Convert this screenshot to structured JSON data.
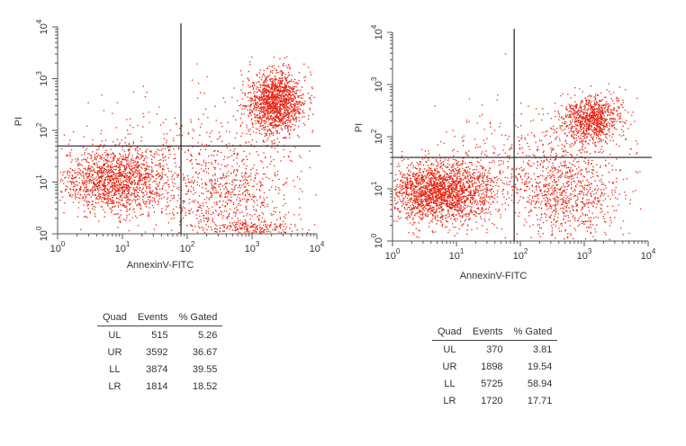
{
  "chart_data": [
    {
      "type": "scatter",
      "xlabel": "AnnexinV-FITC",
      "ylabel": "PI",
      "xscale": "log",
      "yscale": "log",
      "xlim": [
        1,
        10000
      ],
      "ylim": [
        1,
        10000
      ],
      "quadrant_x": 80,
      "quadrant_y": 50,
      "x_ticks": [
        {
          "base": "10",
          "exp": "0"
        },
        {
          "base": "10",
          "exp": "1"
        },
        {
          "base": "10",
          "exp": "2"
        },
        {
          "base": "10",
          "exp": "3"
        },
        {
          "base": "10",
          "exp": "4"
        }
      ],
      "y_ticks": [
        {
          "base": "10",
          "exp": "0"
        },
        {
          "base": "10",
          "exp": "1"
        },
        {
          "base": "10",
          "exp": "2"
        },
        {
          "base": "10",
          "exp": "3"
        },
        {
          "base": "10",
          "exp": "4"
        }
      ],
      "color": "#e8220f",
      "table": {
        "headers": [
          "Quad",
          "Events",
          "% Gated"
        ],
        "rows": [
          [
            "UL",
            "515",
            "5.26"
          ],
          [
            "UR",
            "3592",
            "36.67"
          ],
          [
            "LL",
            "3874",
            "39.55"
          ],
          [
            "LR",
            "1814",
            "18.52"
          ]
        ]
      }
    },
    {
      "type": "scatter",
      "xlabel": "AnnexinV-FITC",
      "ylabel": "PI",
      "xscale": "log",
      "yscale": "log",
      "xlim": [
        1,
        10000
      ],
      "ylim": [
        1,
        10000
      ],
      "quadrant_x": 80,
      "quadrant_y": 40,
      "x_ticks": [
        {
          "base": "10",
          "exp": "0"
        },
        {
          "base": "10",
          "exp": "1"
        },
        {
          "base": "10",
          "exp": "2"
        },
        {
          "base": "10",
          "exp": "3"
        },
        {
          "base": "10",
          "exp": "4"
        }
      ],
      "y_ticks": [
        {
          "base": "10",
          "exp": "0"
        },
        {
          "base": "10",
          "exp": "1"
        },
        {
          "base": "10",
          "exp": "2"
        },
        {
          "base": "10",
          "exp": "3"
        },
        {
          "base": "10",
          "exp": "4"
        }
      ],
      "color": "#e8220f",
      "table": {
        "headers": [
          "Quad",
          "Events",
          "% Gated"
        ],
        "rows": [
          [
            "UL",
            "370",
            "3.81"
          ],
          [
            "UR",
            "1898",
            "19.54"
          ],
          [
            "LL",
            "5725",
            "58.94"
          ],
          [
            "LR",
            "1720",
            "17.71"
          ]
        ]
      }
    }
  ]
}
